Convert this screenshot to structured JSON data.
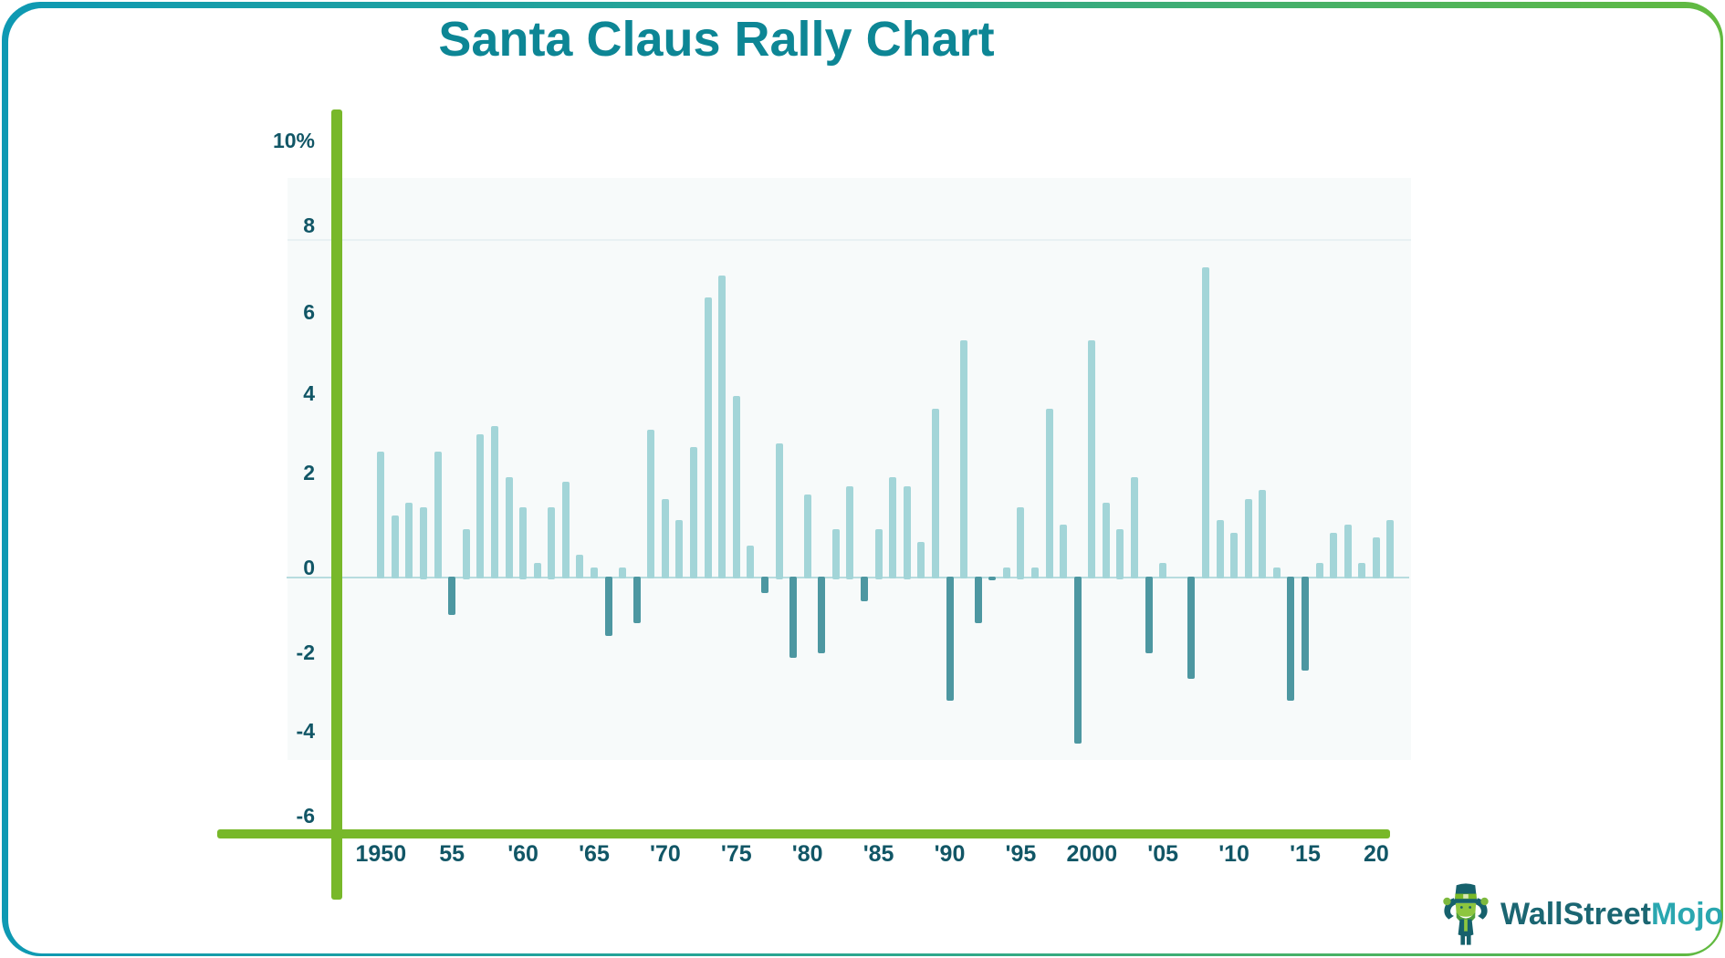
{
  "title": "Santa Claus Rally Chart",
  "y_axis": {
    "ticks": [
      "10%",
      "8",
      "6",
      "4",
      "2",
      "0",
      "-2",
      "-4",
      "-6"
    ]
  },
  "x_axis": {
    "ticks": [
      {
        "label": "1950",
        "year": 1950
      },
      {
        "label": "55",
        "year": 1955
      },
      {
        "label": "'60",
        "year": 1960
      },
      {
        "label": "'65",
        "year": 1965
      },
      {
        "label": "'70",
        "year": 1970
      },
      {
        "label": "'75",
        "year": 1975
      },
      {
        "label": "'80",
        "year": 1980
      },
      {
        "label": "'85",
        "year": 1985
      },
      {
        "label": "'90",
        "year": 1990
      },
      {
        "label": "'95",
        "year": 1995
      },
      {
        "label": "2000",
        "year": 2000
      },
      {
        "label": "'05",
        "year": 2005
      },
      {
        "label": "'10",
        "year": 2010
      },
      {
        "label": "'15",
        "year": 2015
      },
      {
        "label": "20",
        "year": 2020
      }
    ]
  },
  "chart_data": {
    "type": "bar",
    "title": "Santa Claus Rally Chart",
    "ylabel": "%",
    "ylim": [
      -6,
      10
    ],
    "grid": false,
    "legend": "none",
    "positive_color": "#a3d5d8",
    "negative_color": "#4d97a1",
    "years": [
      1950,
      1951,
      1952,
      1953,
      1954,
      1955,
      1956,
      1957,
      1958,
      1959,
      1960,
      1961,
      1962,
      1963,
      1964,
      1965,
      1966,
      1967,
      1968,
      1969,
      1970,
      1971,
      1972,
      1973,
      1974,
      1975,
      1976,
      1977,
      1978,
      1979,
      1980,
      1981,
      1982,
      1983,
      1984,
      1985,
      1986,
      1987,
      1988,
      1989,
      1990,
      1991,
      1992,
      1993,
      1994,
      1995,
      1996,
      1997,
      1998,
      1999,
      2000,
      2001,
      2002,
      2003,
      2004,
      2005,
      2006,
      2007,
      2008,
      2009,
      2010,
      2011,
      2012,
      2013,
      2014,
      2015,
      2016,
      2017,
      2018,
      2019,
      2020,
      2021
    ],
    "values": [
      2.8,
      1.3,
      1.6,
      1.5,
      2.8,
      -1.0,
      1.0,
      3.2,
      3.4,
      2.2,
      1.5,
      0.2,
      1.5,
      2.1,
      0.4,
      0.1,
      -1.5,
      0.1,
      -1.2,
      3.3,
      1.7,
      1.2,
      2.9,
      6.4,
      6.9,
      4.1,
      0.6,
      -0.5,
      3.0,
      -2.0,
      1.8,
      -1.9,
      1.0,
      2.0,
      -0.7,
      1.0,
      2.2,
      2.0,
      0.7,
      3.8,
      -3.0,
      5.4,
      -1.2,
      -0.2,
      0.1,
      1.5,
      0.1,
      3.8,
      1.1,
      -4.0,
      5.4,
      1.6,
      1.0,
      2.2,
      -1.9,
      0.2,
      0.0,
      -2.5,
      7.1,
      1.2,
      0.9,
      1.7,
      1.9,
      0.1,
      -3.0,
      -2.3,
      0.2,
      0.9,
      1.1,
      0.2,
      0.8,
      1.2
    ]
  },
  "logo": {
    "brand_part1": "WallStreet",
    "brand_part2": "Mojo"
  },
  "colors": {
    "title": "#0d8695",
    "axis_labels": "#115666",
    "axis_green": "#78b82a",
    "bar_positive": "#a3d5d8",
    "bar_negative": "#4d97a1",
    "frame_gradient_left": "#0e99b3",
    "frame_gradient_right": "#62ba3f"
  }
}
